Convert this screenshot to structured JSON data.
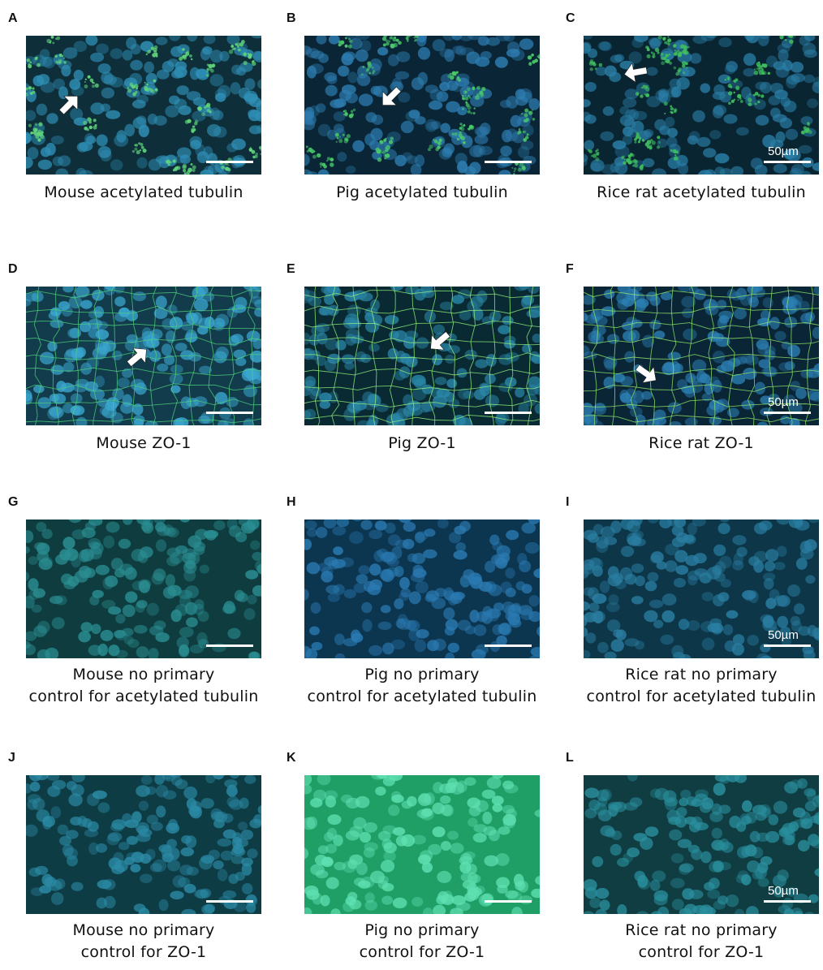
{
  "panels": [
    {
      "letter": "A",
      "caption_lines": [
        "Mouse acetylated tubulin"
      ],
      "scale_label": "",
      "style": "tubulin",
      "bg": "#0e2f3a",
      "nuc": "#2f8fb6",
      "green": "#5fd47a",
      "arrow": true
    },
    {
      "letter": "B",
      "caption_lines": [
        "Pig acetylated tubulin"
      ],
      "scale_label": "",
      "style": "tubulin",
      "bg": "#0a2636",
      "nuc": "#2d7cb0",
      "green": "#49c86a",
      "arrow": true
    },
    {
      "letter": "C",
      "caption_lines": [
        "Rice rat acetylated tubulin"
      ],
      "scale_label": "50µm",
      "style": "tubulin",
      "bg": "#0a2532",
      "nuc": "#2a7fa8",
      "green": "#3fc05f",
      "arrow": true
    },
    {
      "letter": "D",
      "caption_lines": [
        "Mouse ZO-1"
      ],
      "scale_label": "",
      "style": "zo1",
      "bg": "#123c4c",
      "nuc": "#3aa6cf",
      "green": "#4dd07a",
      "arrow": true
    },
    {
      "letter": "E",
      "caption_lines": [
        "Pig ZO-1"
      ],
      "scale_label": "",
      "style": "zo1",
      "bg": "#0a2a33",
      "nuc": "#2a87a8",
      "green": "#8ff07a",
      "arrow": true
    },
    {
      "letter": "F",
      "caption_lines": [
        "Rice rat ZO-1"
      ],
      "scale_label": "50µm",
      "style": "zo1",
      "bg": "#0a2535",
      "nuc": "#2c80b4",
      "green": "#8fe86a",
      "arrow": true
    },
    {
      "letter": "G",
      "caption_lines": [
        "Mouse no primary",
        "control for acetylated tubulin"
      ],
      "scale_label": "",
      "style": "plain",
      "bg": "#0f3d3f",
      "nuc": "#2a8e92",
      "green": "",
      "arrow": false
    },
    {
      "letter": "H",
      "caption_lines": [
        "Pig no primary",
        "control for acetylated tubulin"
      ],
      "scale_label": "",
      "style": "plain",
      "bg": "#0c3550",
      "nuc": "#2a7ab2",
      "green": "",
      "arrow": false
    },
    {
      "letter": "I",
      "caption_lines": [
        "Rice rat no primary",
        "control for acetylated tubulin"
      ],
      "scale_label": "50µm",
      "style": "plain",
      "bg": "#0d3648",
      "nuc": "#2a7ea2",
      "green": "",
      "arrow": false
    },
    {
      "letter": "J",
      "caption_lines": [
        "Mouse no primary",
        "control for ZO-1"
      ],
      "scale_label": "",
      "style": "plain",
      "bg": "#0e3c45",
      "nuc": "#2b8ba6",
      "green": "",
      "arrow": false
    },
    {
      "letter": "K",
      "caption_lines": [
        "Pig no primary",
        "control for ZO-1"
      ],
      "scale_label": "",
      "style": "plain",
      "bg": "#1f9e66",
      "nuc": "#5fe0b2",
      "green": "",
      "arrow": false
    },
    {
      "letter": "L",
      "caption_lines": [
        "Rice rat no primary",
        "control for ZO-1"
      ],
      "scale_label": "50µm",
      "style": "plain",
      "bg": "#0f3d42",
      "nuc": "#2a8f9e",
      "green": "",
      "arrow": false
    }
  ]
}
